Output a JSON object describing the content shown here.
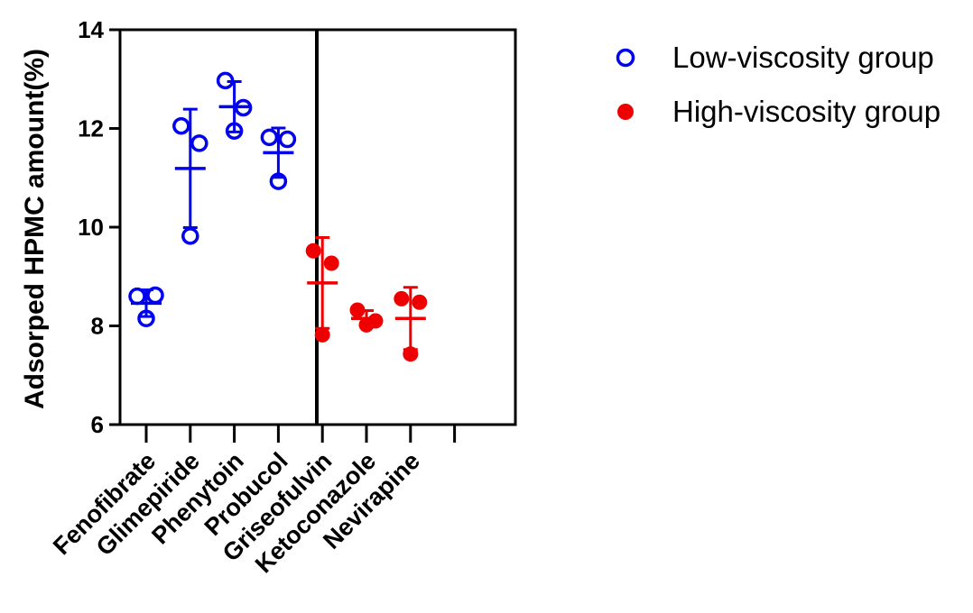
{
  "chart_data": {
    "type": "scatter",
    "ylabel": "Adsorped HPMC amount(%)",
    "xlabel": "",
    "ylim": [
      6,
      14
    ],
    "yticks": [
      6,
      8,
      10,
      12,
      14
    ],
    "grid": false,
    "legend_position": "right",
    "categories": [
      "Fenofibrate",
      "Glimepiride",
      "Phenytoin",
      "Probucol",
      "Griseofulvin",
      "Ketoconazole",
      "Nevirapine",
      ""
    ],
    "series": [
      {
        "name": "Low-viscosity group",
        "color": "#0000ee",
        "marker": "open-circle",
        "groups": [
          {
            "category": "Fenofibrate",
            "points": [
              8.6,
              8.62,
              8.15
            ],
            "mean": 8.46,
            "sd": 0.27
          },
          {
            "category": "Glimepiride",
            "points": [
              12.05,
              11.7,
              9.82
            ],
            "mean": 11.19,
            "sd": 1.2
          },
          {
            "category": "Phenytoin",
            "points": [
              12.97,
              12.42,
              11.95
            ],
            "mean": 12.44,
            "sd": 0.51
          },
          {
            "category": "Probucol",
            "points": [
              11.82,
              11.78,
              10.93
            ],
            "mean": 11.51,
            "sd": 0.5
          }
        ]
      },
      {
        "name": "High-viscosity group",
        "color": "#ee0000",
        "marker": "filled-circle",
        "groups": [
          {
            "category": "Griseofulvin",
            "points": [
              9.52,
              9.27,
              7.82
            ],
            "mean": 8.87,
            "sd": 0.92
          },
          {
            "category": "Ketoconazole",
            "points": [
              8.32,
              8.1,
              8.02
            ],
            "mean": 8.15,
            "sd": 0.16
          },
          {
            "category": "Nevirapine",
            "points": [
              8.55,
              8.48,
              7.43
            ],
            "mean": 8.15,
            "sd": 0.63
          }
        ]
      }
    ]
  }
}
